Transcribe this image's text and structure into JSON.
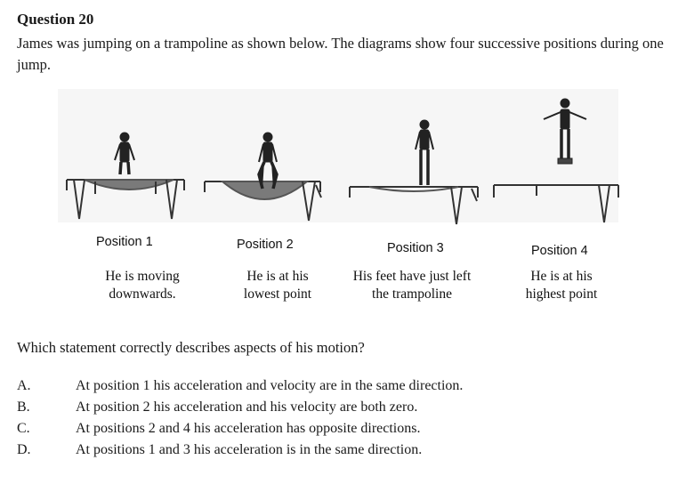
{
  "question": {
    "title": "Question 20",
    "intro": "James was jumping on a trampoline as shown below. The diagrams show four successive positions during one jump.",
    "prompt": "Which statement correctly describes aspects of his motion?"
  },
  "positions": [
    {
      "label": "Position 1",
      "desc_line1": "He is moving",
      "desc_line2": "downwards."
    },
    {
      "label": "Position 2",
      "desc_line1": "He is at his",
      "desc_line2": "lowest point"
    },
    {
      "label": "Position 3",
      "desc_line1": "His feet have just left",
      "desc_line2": "the trampoline"
    },
    {
      "label": "Position 4",
      "desc_line1": "He is at his",
      "desc_line2": "highest point"
    }
  ],
  "options": [
    {
      "letter": "A.",
      "text": "At position 1 his acceleration and velocity are in the same direction."
    },
    {
      "letter": "B.",
      "text": "At position 2 his acceleration and his velocity are both zero."
    },
    {
      "letter": "C.",
      "text": "At positions 2 and 4 his acceleration has opposite directions."
    },
    {
      "letter": "D.",
      "text": "At positions 1 and 3 his acceleration is in the same direction."
    }
  ]
}
